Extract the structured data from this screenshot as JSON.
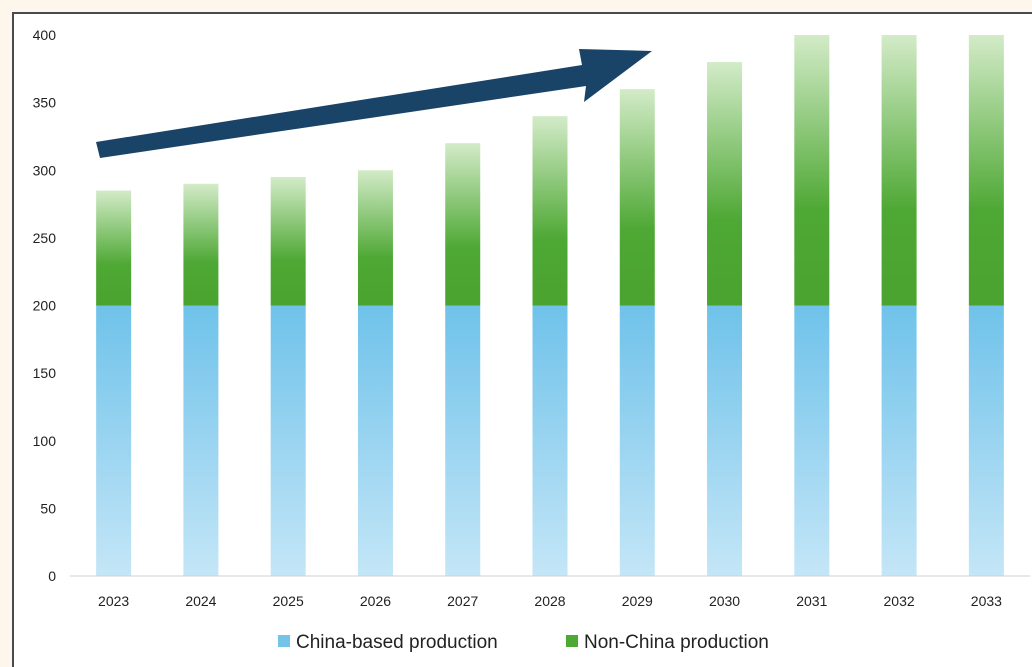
{
  "chart_data": {
    "type": "bar",
    "stacked": true,
    "categories": [
      "2023",
      "2024",
      "2025",
      "2026",
      "2027",
      "2028",
      "2029",
      "2030",
      "2031",
      "2032",
      "2033"
    ],
    "series": [
      {
        "name": "China-based production",
        "values": [
          200,
          200,
          200,
          200,
          200,
          200,
          200,
          200,
          200,
          200,
          200
        ]
      },
      {
        "name": "Non-China production",
        "values": [
          85,
          90,
          95,
          100,
          120,
          140,
          160,
          180,
          200,
          200,
          200
        ]
      }
    ],
    "title": "",
    "xlabel": "",
    "ylabel": "",
    "ylim": [
      0,
      400
    ],
    "yticks": [
      0,
      50,
      100,
      150,
      200,
      250,
      300,
      350,
      400
    ],
    "grid": false,
    "legend_position": "bottom",
    "colors": {
      "china": "#74c4ea",
      "non_china": "#4ea834",
      "arrow": "#1a4368"
    },
    "annotations": [
      "upward-trend-arrow"
    ]
  }
}
